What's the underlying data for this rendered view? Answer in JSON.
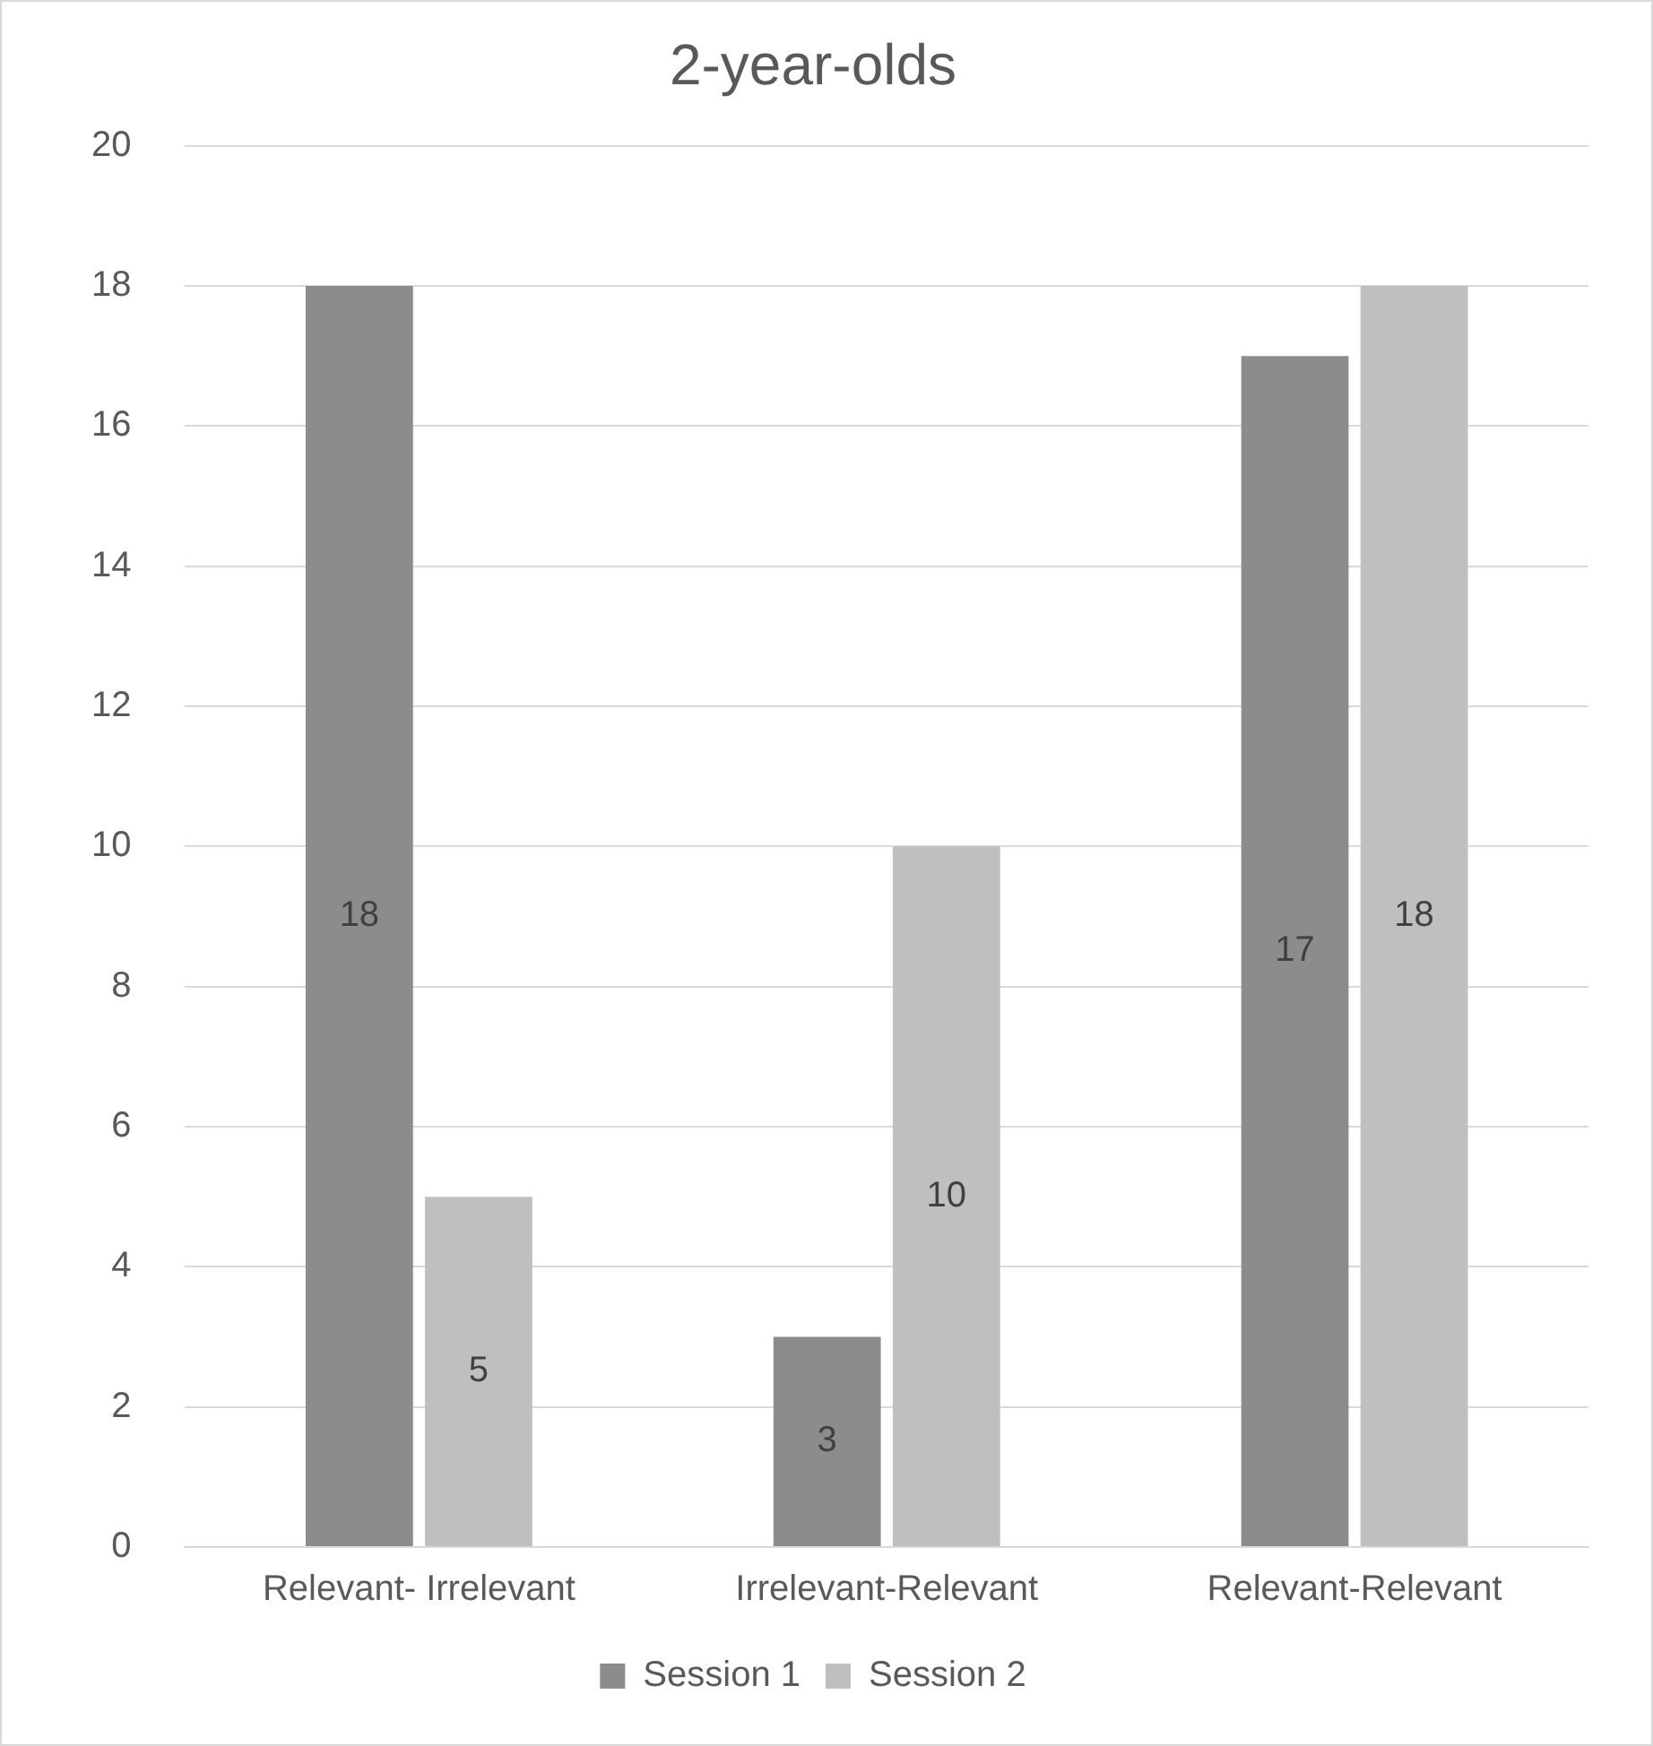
{
  "chart_data": {
    "type": "bar",
    "title": "2-year-olds",
    "categories": [
      "Relevant- Irrelevant",
      "Irrelevant-Relevant",
      "Relevant-Relevant"
    ],
    "series": [
      {
        "name": "Session 1",
        "color": "#8c8c8c",
        "values": [
          18,
          3,
          17
        ]
      },
      {
        "name": "Session 2",
        "color": "#bfbfbf",
        "values": [
          5,
          10,
          18
        ]
      }
    ],
    "ylim": [
      0,
      20
    ],
    "yticks": [
      0,
      2,
      4,
      6,
      8,
      10,
      12,
      14,
      16,
      18,
      20
    ],
    "grid": "y",
    "legend": "bottom",
    "data_labels": true
  }
}
